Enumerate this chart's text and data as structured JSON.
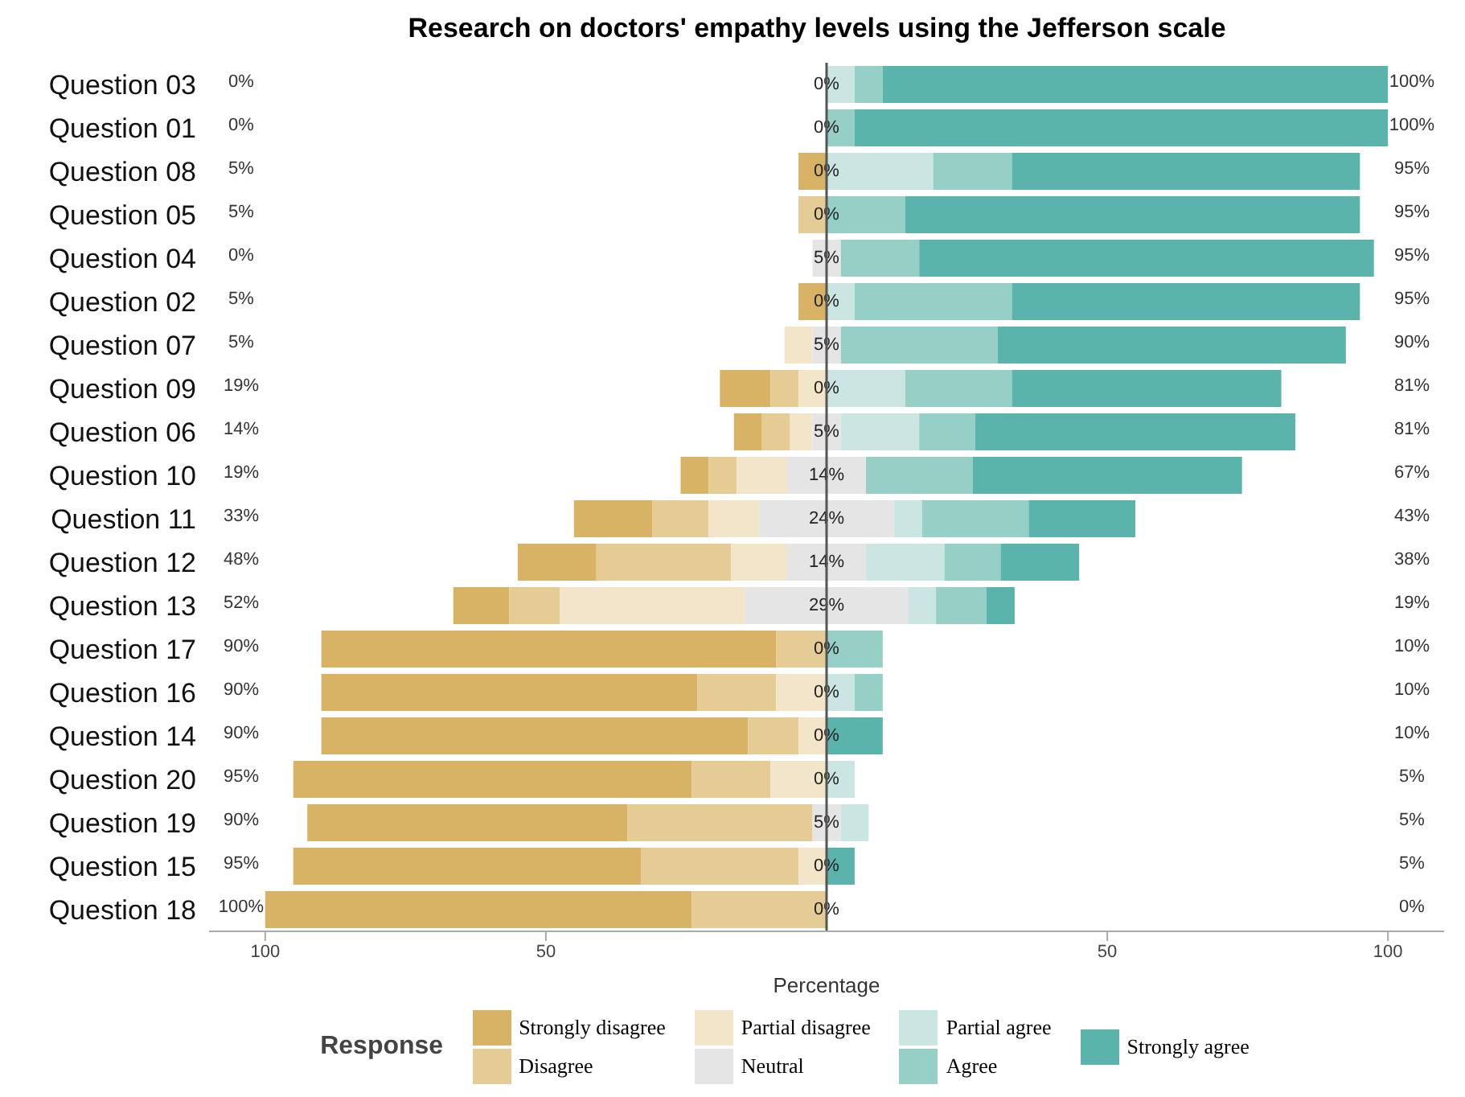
{
  "chart_data": {
    "type": "bar",
    "orientation": "horizontal",
    "title": "Research on doctors' empathy levels using the Jefferson scale",
    "xlabel": "Percentage",
    "legend_title": "Response",
    "legend": "bottom",
    "categories": [
      "Question 03",
      "Question 01",
      "Question 08",
      "Question 05",
      "Question 04",
      "Question 02",
      "Question 07",
      "Question 09",
      "Question 06",
      "Question 10",
      "Question 11",
      "Question 12",
      "Question 13",
      "Question 17",
      "Question 16",
      "Question 14",
      "Question 20",
      "Question 19",
      "Question 15",
      "Question 18"
    ],
    "xlim": [
      -110,
      110
    ],
    "xticks": [
      {
        "value": -100,
        "label": "100"
      },
      {
        "value": -50,
        "label": "50"
      },
      50,
      100
    ],
    "ref_lines": [
      {
        "axis": "x",
        "value": 0,
        "color": "#555555"
      }
    ],
    "series": [
      {
        "name": "Strongly disagree",
        "color": "#d8b365",
        "values": [
          0,
          0,
          -5,
          0,
          0,
          -5,
          0,
          -9,
          -5,
          -5,
          -14,
          -14,
          -10,
          -81,
          -67,
          -76,
          -71,
          -57,
          -62,
          -76
        ],
        "base": [
          null,
          null,
          0,
          null,
          null,
          0,
          null,
          -10,
          -11.5,
          -21,
          -31,
          -41,
          -56.5,
          -9,
          -23,
          -14,
          -24,
          -35.5,
          -33,
          -24
        ]
      },
      {
        "name": "Disagree",
        "color": "#e5cc95",
        "values": [
          0,
          0,
          0,
          -5,
          0,
          0,
          0,
          -5,
          -5,
          -5,
          -10,
          -24,
          -9,
          -9,
          -14,
          -9,
          -14,
          -33,
          -28,
          -24
        ],
        "base": [
          null,
          null,
          null,
          0,
          null,
          null,
          null,
          -5,
          -6.5,
          -16,
          -21,
          -17,
          -47.5,
          0,
          -9,
          -5,
          -10,
          -2.5,
          -5,
          0
        ]
      },
      {
        "name": "Partial disagree",
        "color": "#f3e5c9",
        "values": [
          0,
          0,
          0,
          0,
          0,
          0,
          -5,
          -5,
          -4,
          -9,
          -9,
          -10,
          -33,
          0,
          -9,
          -5,
          -10,
          0,
          -5,
          0
        ],
        "base": [
          null,
          null,
          null,
          null,
          null,
          null,
          -2.5,
          0,
          -2.5,
          -7,
          -12,
          -7,
          -14.5,
          null,
          0,
          0,
          0,
          null,
          0,
          null
        ]
      },
      {
        "name": "Neutral",
        "color": "#e5e5e5",
        "values": [
          0,
          0,
          0,
          0,
          5,
          0,
          5,
          0,
          5,
          14,
          24,
          14,
          29,
          0,
          0,
          0,
          0,
          5,
          0,
          0
        ],
        "base": [
          null,
          null,
          null,
          null,
          -2.5,
          null,
          -2.5,
          null,
          -2.5,
          -7,
          -12,
          -7,
          -14.5,
          null,
          null,
          null,
          null,
          -2.5,
          null,
          null
        ],
        "value_labels": [
          "0%",
          "0%",
          "0%",
          "0%",
          "5%",
          "0%",
          "5%",
          "0%",
          "5%",
          "14%",
          "24%",
          "14%",
          "29%",
          "0%",
          "0%",
          "0%",
          "0%",
          "5%",
          "0%",
          "0%"
        ]
      },
      {
        "name": "Partial agree",
        "color": "#cbe6e2",
        "values": [
          5,
          0,
          19,
          0,
          0,
          5,
          0,
          14,
          14,
          0,
          5,
          14,
          5,
          0,
          5,
          0,
          5,
          5,
          0,
          0
        ],
        "base": [
          0,
          null,
          0,
          null,
          null,
          0,
          null,
          0,
          2.5,
          null,
          12,
          7,
          14.5,
          null,
          0,
          null,
          0,
          2.5,
          null,
          null
        ]
      },
      {
        "name": "Agree",
        "color": "#95cfc6",
        "values": [
          5,
          5,
          14,
          14,
          14,
          28,
          28,
          19,
          10,
          19,
          19,
          10,
          9,
          10,
          5,
          0,
          0,
          0,
          0,
          0
        ],
        "base": [
          5,
          0,
          19,
          0,
          2.5,
          5,
          2.5,
          14,
          16.5,
          7,
          17,
          21,
          19.5,
          0,
          5,
          null,
          null,
          null,
          null,
          null
        ]
      },
      {
        "name": "Strongly agree",
        "color": "#5ab4ac",
        "values": [
          90,
          95,
          62,
          81,
          81,
          62,
          62,
          48,
          57,
          48,
          19,
          14,
          5,
          0,
          0,
          10,
          0,
          0,
          5,
          0
        ],
        "base": [
          10,
          5,
          33,
          14,
          16.5,
          33,
          30.5,
          33,
          26.5,
          26,
          36,
          31,
          28.5,
          null,
          null,
          0,
          null,
          null,
          0,
          null
        ]
      }
    ],
    "totals": [
      [
        "0%",
        "100%"
      ],
      [
        "0%",
        "100%"
      ],
      [
        "5%",
        "95%"
      ],
      [
        "5%",
        "95%"
      ],
      [
        "0%",
        "95%"
      ],
      [
        "5%",
        "95%"
      ],
      [
        "5%",
        "90%"
      ],
      [
        "19%",
        "81%"
      ],
      [
        "14%",
        "81%"
      ],
      [
        "19%",
        "67%"
      ],
      [
        "33%",
        "43%"
      ],
      [
        "48%",
        "38%"
      ],
      [
        "52%",
        "19%"
      ],
      [
        "90%",
        "10%"
      ],
      [
        "90%",
        "10%"
      ],
      [
        "90%",
        "10%"
      ],
      [
        "95%",
        "5%"
      ],
      [
        "90%",
        "5%"
      ],
      [
        "95%",
        "5%"
      ],
      [
        "100%",
        "0%"
      ]
    ]
  }
}
